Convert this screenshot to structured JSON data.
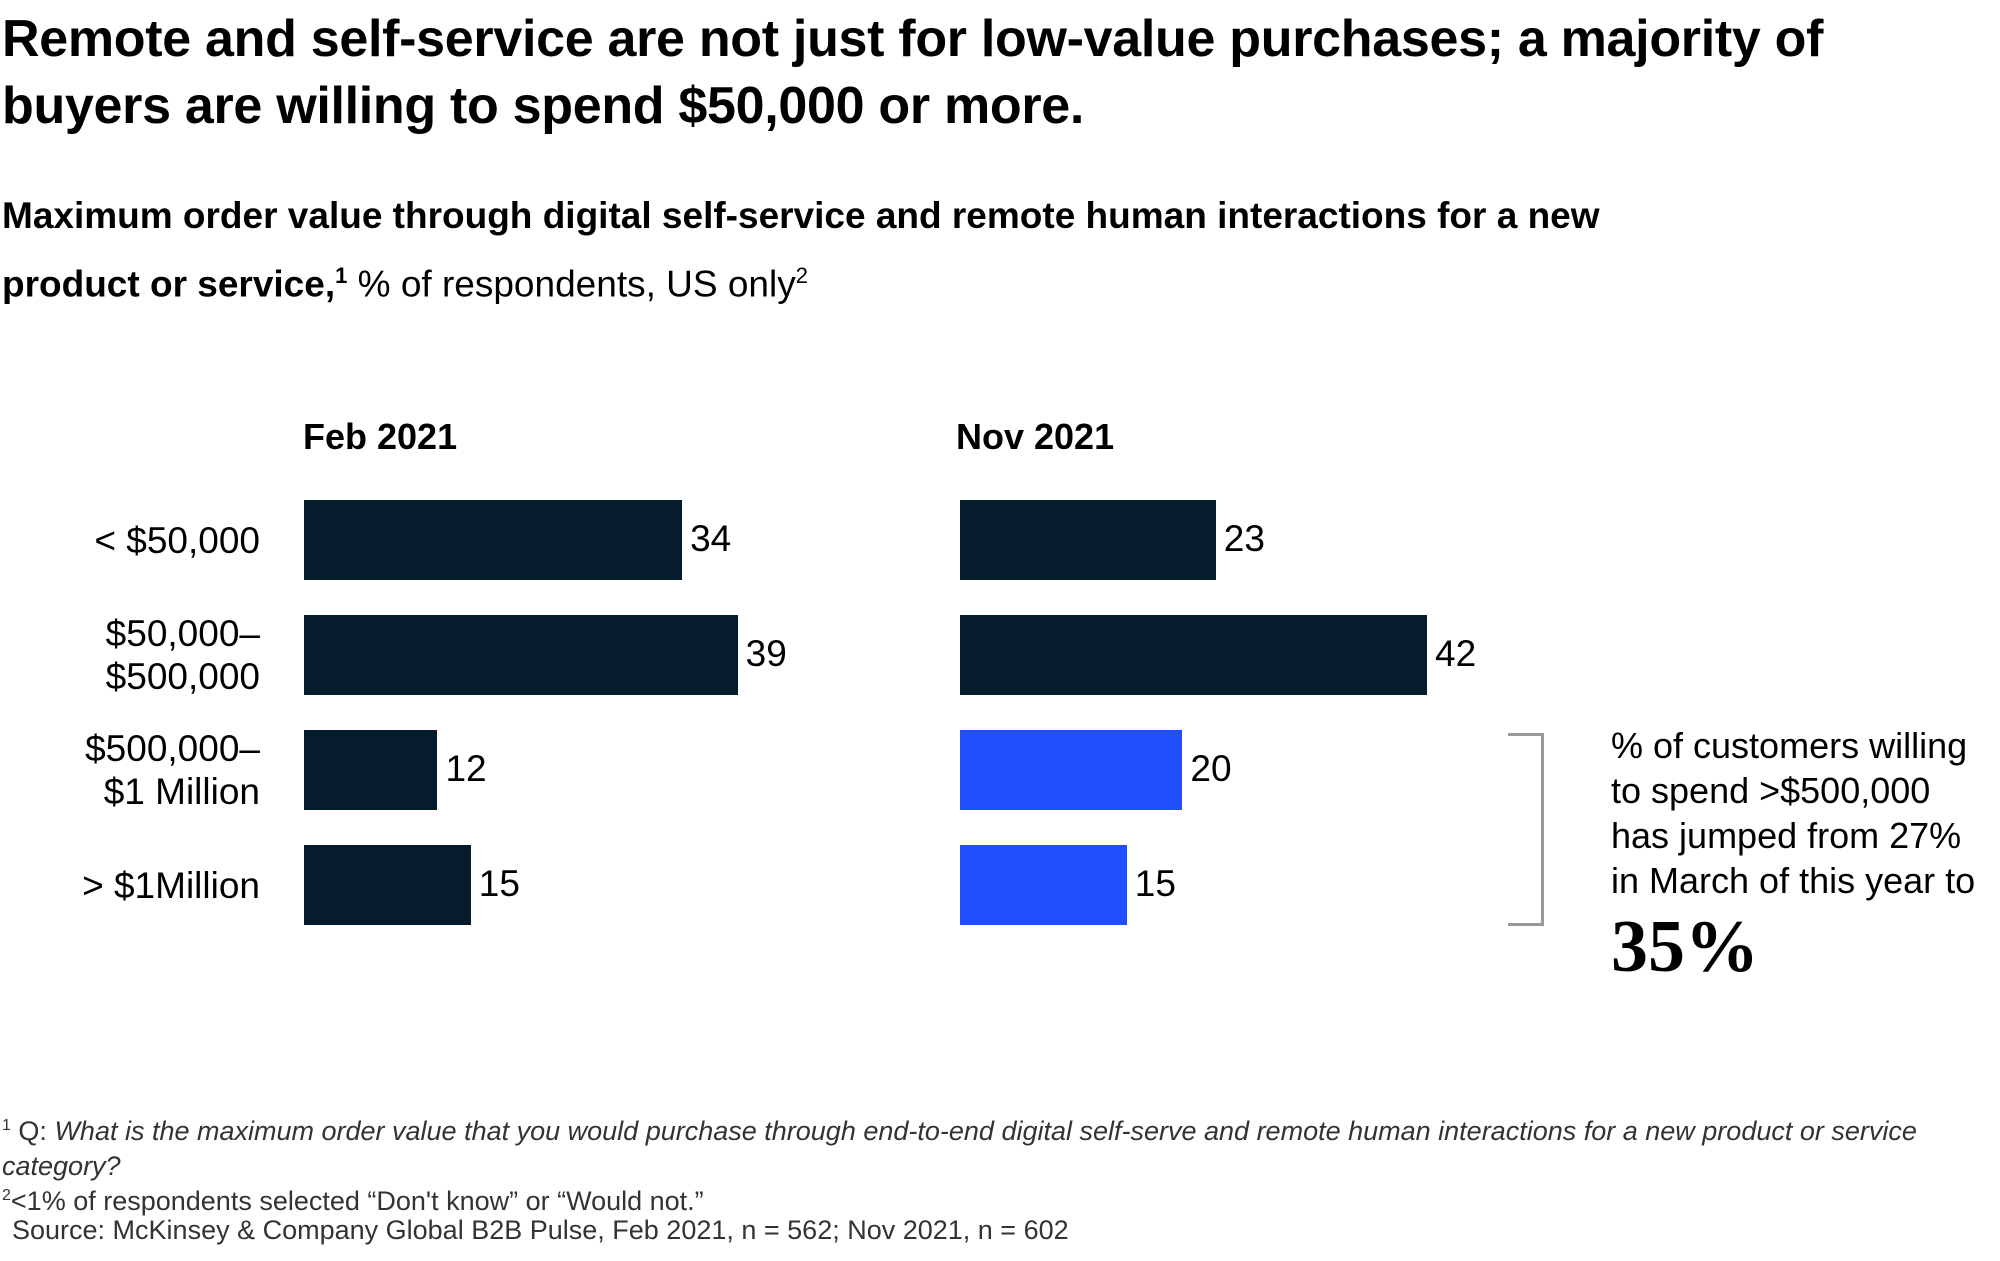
{
  "title": "Remote and self-service are not just for low-value purchases; a majority of buyers are willing to spend $50,000 or more.",
  "subtitle": {
    "bold": "Maximum order value through digital self-service and remote human interactions for a new product or service,",
    "bold_sup": "1",
    "regular": " % of respondents, US only",
    "regular_sup": "2"
  },
  "chart_data": {
    "type": "bar",
    "orientation": "horizontal",
    "categories": [
      "< $50,000",
      "$50,000–\n$500,000",
      "$500,000–\n$1 Million",
      "> $1Million"
    ],
    "series": [
      {
        "name": "Feb 2021",
        "values": [
          34,
          39,
          12,
          15
        ],
        "colors": [
          "#051c2c",
          "#051c2c",
          "#051c2c",
          "#051c2c"
        ]
      },
      {
        "name": "Nov 2021",
        "values": [
          23,
          42,
          20,
          15
        ],
        "colors": [
          "#051c2c",
          "#051c2c",
          "#1f4fff",
          "#1f4fff"
        ]
      }
    ],
    "xlim": [
      0,
      45
    ],
    "grid": false
  },
  "annotation": {
    "text": [
      "% of customers willing",
      "to spend >$500,000",
      "has jumped from 27%",
      "in March of this year to"
    ],
    "highlight": "35%"
  },
  "footnotes": {
    "f1_mark": "1",
    "f1_prefix": "Q: ",
    "f1_text": "What is the maximum order value that you would purchase through end-to-end digital self-serve and remote human interactions for a new product or service category?",
    "f2_mark": "2",
    "f2_text": "<1% of respondents selected “Don't know” or “Would not.”",
    "source": "Source: McKinsey & Company Global B2B Pulse, Feb 2021, n = 562; Nov 2021, n = 602"
  }
}
